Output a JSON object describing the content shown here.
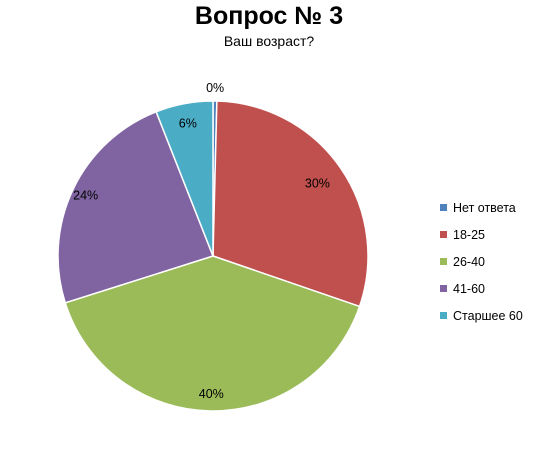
{
  "chart_data": {
    "type": "pie",
    "title": "Вопрос № 3",
    "subtitle": "Ваш возраст?",
    "categories": [
      "Нет ответа",
      "18-25",
      "26-40",
      "41-60",
      "Старшее 60"
    ],
    "values": [
      0.4,
      30,
      40,
      24,
      6
    ],
    "data_labels": [
      "0%",
      "30%",
      "40%",
      "24%",
      "6%"
    ],
    "colors": [
      "#4F81BD",
      "#C0504D",
      "#9BBB59",
      "#8064A2",
      "#4BACC6"
    ],
    "legend_position": "right",
    "start_angle_deg": 0,
    "direction": "clockwise"
  }
}
